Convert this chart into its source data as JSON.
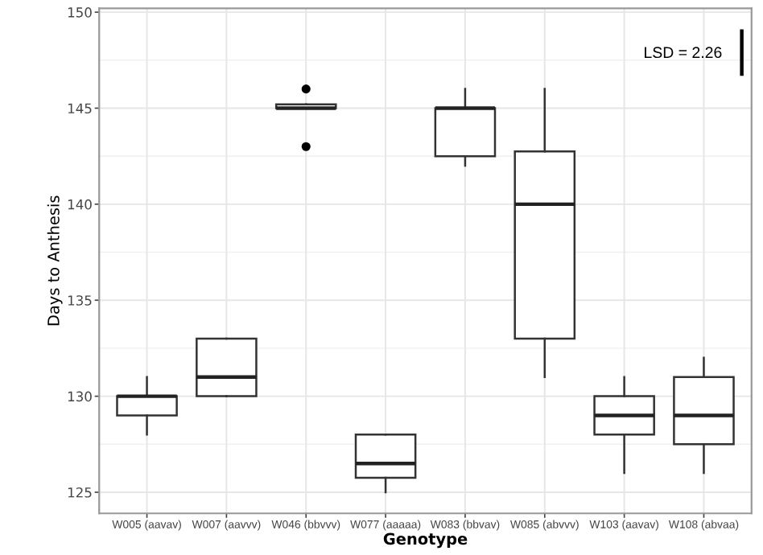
{
  "chart_data": {
    "type": "box",
    "xlabel": "Genotype",
    "ylabel": "Days to Anthesis",
    "categories": [
      "W005 (aavav)",
      "W007 (aavvv)",
      "W046 (bbvvv)",
      "W077 (aaaaa)",
      "W083 (bbvav)",
      "W085 (abvvv)",
      "W103 (aavav)",
      "W108 (abvaa)"
    ],
    "boxes": [
      {
        "low": 128,
        "q1": 129,
        "median": 130,
        "q3": 130,
        "high": 131
      },
      {
        "low": 130,
        "q1": 130,
        "median": 131,
        "q3": 133,
        "high": 133
      },
      {
        "low": 145,
        "q1": 145,
        "median": 145,
        "q3": 145.2,
        "high": 145.2,
        "outliers": [
          146,
          143
        ]
      },
      {
        "low": 125,
        "q1": 125.75,
        "median": 126.5,
        "q3": 128,
        "high": 128
      },
      {
        "low": 142,
        "q1": 142.5,
        "median": 145,
        "q3": 145,
        "high": 146
      },
      {
        "low": 131,
        "q1": 133,
        "median": 140,
        "q3": 142.75,
        "high": 146
      },
      {
        "low": 126,
        "q1": 128,
        "median": 129,
        "q3": 130,
        "high": 131
      },
      {
        "low": 126,
        "q1": 127.5,
        "median": 129,
        "q3": 131,
        "high": 132
      }
    ],
    "ylim": [
      123.9,
      150.2
    ],
    "yticks": [
      125,
      130,
      135,
      140,
      145,
      150
    ],
    "grid": true,
    "annotations": [
      "LSD = 2.26"
    ]
  }
}
